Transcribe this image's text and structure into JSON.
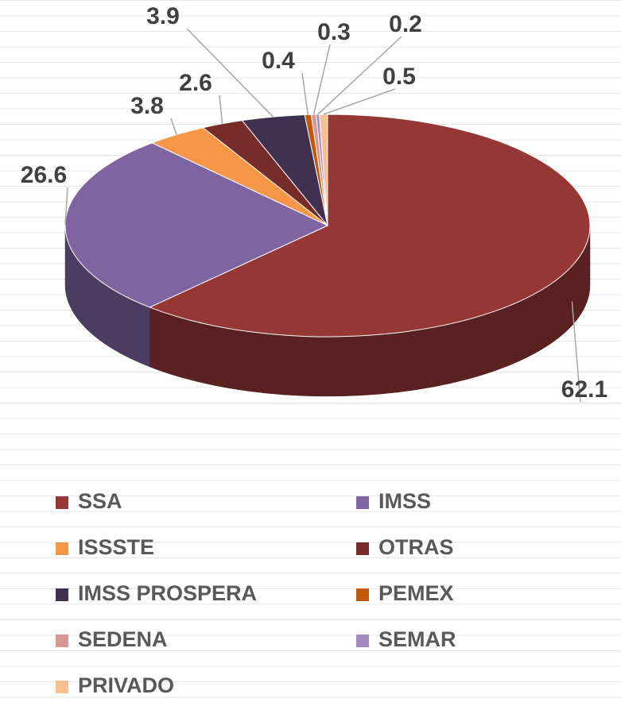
{
  "chart_data": {
    "type": "pie",
    "categories": [
      "SSA",
      "IMSS",
      "ISSSTE",
      "OTRAS",
      "IMSS PROSPERA",
      "PEMEX",
      "SEDENA",
      "SEMAR",
      "PRIVADO"
    ],
    "values": [
      62.1,
      26.6,
      3.8,
      2.6,
      3.9,
      0.4,
      0.3,
      0.2,
      0.5
    ],
    "colors": [
      "#953735",
      "#8064a2",
      "#f79646",
      "#772c2a",
      "#403151",
      "#c0580b",
      "#d99694",
      "#a28ac0",
      "#fac090"
    ],
    "legend": "bottom"
  }
}
